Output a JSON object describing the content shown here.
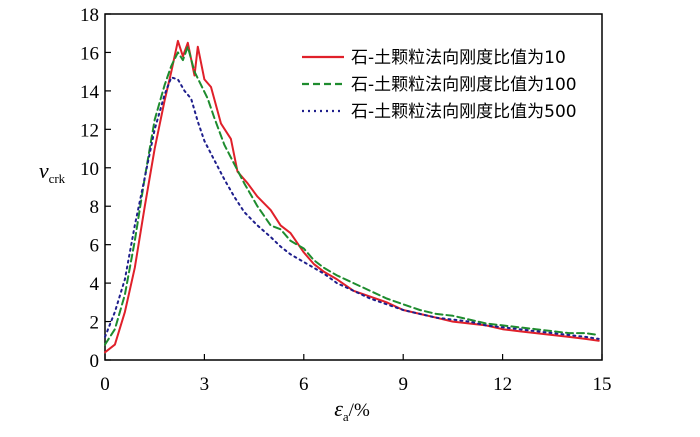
{
  "chart_data": {
    "type": "line",
    "xlabel": {
      "main": "ε",
      "sub": "a",
      "unit": "/%"
    },
    "ylabel": {
      "main": "v",
      "sub": "crk"
    },
    "xlim": [
      0,
      15
    ],
    "ylim": [
      0,
      18
    ],
    "x_ticks": [
      0,
      3,
      6,
      9,
      12,
      15
    ],
    "y_ticks": [
      0,
      2,
      4,
      6,
      8,
      10,
      12,
      14,
      16,
      18
    ],
    "legend_position": "top-right",
    "grid": false,
    "series": [
      {
        "name": "石-土颗粒法向刚度比值为10",
        "color": "#e0202a",
        "dash": "solid",
        "x": [
          0,
          0.3,
          0.6,
          0.9,
          1.2,
          1.5,
          1.8,
          2.0,
          2.2,
          2.35,
          2.5,
          2.7,
          2.8,
          3.0,
          3.2,
          3.5,
          3.8,
          4.0,
          4.3,
          4.6,
          5.0,
          5.3,
          5.6,
          6.0,
          6.3,
          6.6,
          7.0,
          7.5,
          8.0,
          8.5,
          9.0,
          9.5,
          10.0,
          10.5,
          11.0,
          11.5,
          12.0,
          12.5,
          13.0,
          13.5,
          14.0,
          14.5,
          14.9
        ],
        "y": [
          0.4,
          0.8,
          2.5,
          4.8,
          8.0,
          11.0,
          13.5,
          15.0,
          16.6,
          15.8,
          16.5,
          14.8,
          16.3,
          14.6,
          14.2,
          12.3,
          11.5,
          9.8,
          9.2,
          8.5,
          7.8,
          7.0,
          6.6,
          5.6,
          5.0,
          4.6,
          4.2,
          3.6,
          3.3,
          3.0,
          2.6,
          2.4,
          2.2,
          2.0,
          1.9,
          1.8,
          1.6,
          1.5,
          1.4,
          1.3,
          1.2,
          1.1,
          1.0
        ]
      },
      {
        "name": "石-土颗粒法向刚度比值为100",
        "color": "#1e8c2e",
        "dash": "dashed",
        "x": [
          0,
          0.3,
          0.6,
          0.9,
          1.2,
          1.5,
          1.8,
          2.0,
          2.2,
          2.35,
          2.5,
          2.7,
          2.9,
          3.1,
          3.3,
          3.6,
          3.9,
          4.2,
          4.6,
          5.0,
          5.3,
          5.6,
          6.0,
          6.3,
          6.6,
          7.0,
          7.5,
          8.0,
          8.5,
          9.0,
          9.5,
          10.0,
          10.5,
          11.0,
          11.5,
          12.0,
          12.5,
          13.0,
          13.5,
          14.0,
          14.5,
          14.9
        ],
        "y": [
          0.8,
          1.6,
          3.4,
          6.2,
          9.5,
          12.5,
          14.3,
          15.3,
          16.0,
          15.6,
          16.3,
          15.0,
          14.3,
          13.6,
          12.6,
          11.2,
          10.2,
          9.2,
          8.0,
          7.0,
          6.8,
          6.2,
          5.8,
          5.2,
          4.8,
          4.4,
          4.0,
          3.6,
          3.2,
          2.9,
          2.6,
          2.4,
          2.3,
          2.1,
          1.9,
          1.8,
          1.7,
          1.6,
          1.5,
          1.4,
          1.4,
          1.3
        ]
      },
      {
        "name": "石-土颗粒法向刚度比值为500",
        "color": "#1f1f8c",
        "dash": "dotted",
        "x": [
          0,
          0.3,
          0.6,
          0.9,
          1.2,
          1.5,
          1.8,
          2.0,
          2.2,
          2.4,
          2.6,
          2.8,
          3.0,
          3.3,
          3.6,
          3.9,
          4.2,
          4.6,
          5.0,
          5.3,
          5.6,
          6.0,
          6.3,
          6.6,
          7.0,
          7.5,
          8.0,
          8.5,
          9.0,
          9.5,
          10.0,
          10.5,
          11.0,
          11.5,
          12.0,
          12.5,
          13.0,
          13.5,
          14.0,
          14.5,
          14.9
        ],
        "y": [
          1.2,
          2.5,
          4.2,
          7.0,
          9.5,
          12.0,
          13.8,
          14.7,
          14.6,
          14.0,
          13.6,
          12.4,
          11.4,
          10.4,
          9.4,
          8.5,
          7.7,
          7.0,
          6.4,
          5.9,
          5.5,
          5.1,
          4.8,
          4.5,
          4.0,
          3.6,
          3.2,
          2.9,
          2.6,
          2.4,
          2.2,
          2.1,
          2.0,
          1.8,
          1.7,
          1.6,
          1.5,
          1.4,
          1.3,
          1.2,
          1.1
        ]
      }
    ]
  }
}
